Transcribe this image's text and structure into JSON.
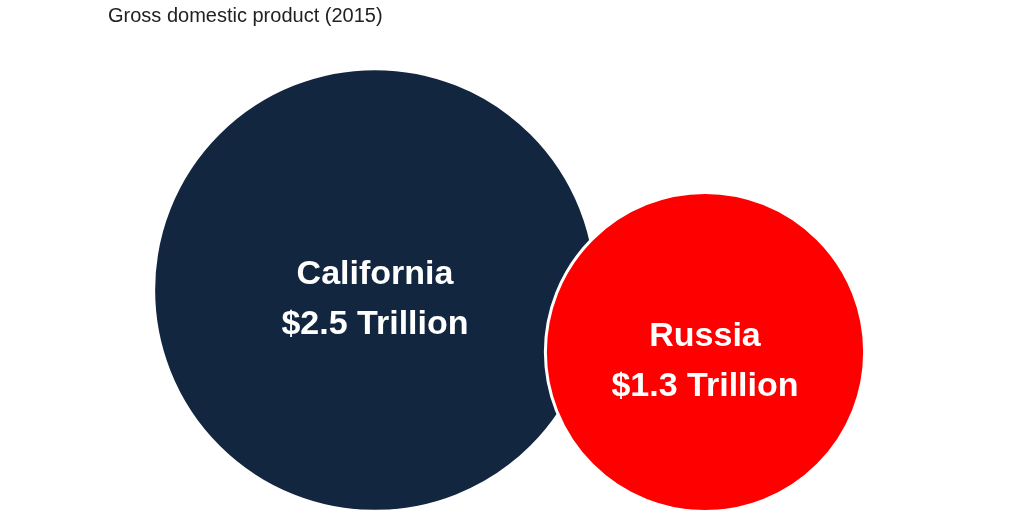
{
  "chart_data": {
    "type": "other",
    "title": "Gross domestic product (2015)",
    "categories": [
      "California",
      "Russia"
    ],
    "values": [
      2.5,
      1.3
    ],
    "value_labels": [
      "$2.5 Trillion",
      "$1.3 Trillion"
    ],
    "colors": [
      "#132640",
      "#fe0000"
    ]
  }
}
